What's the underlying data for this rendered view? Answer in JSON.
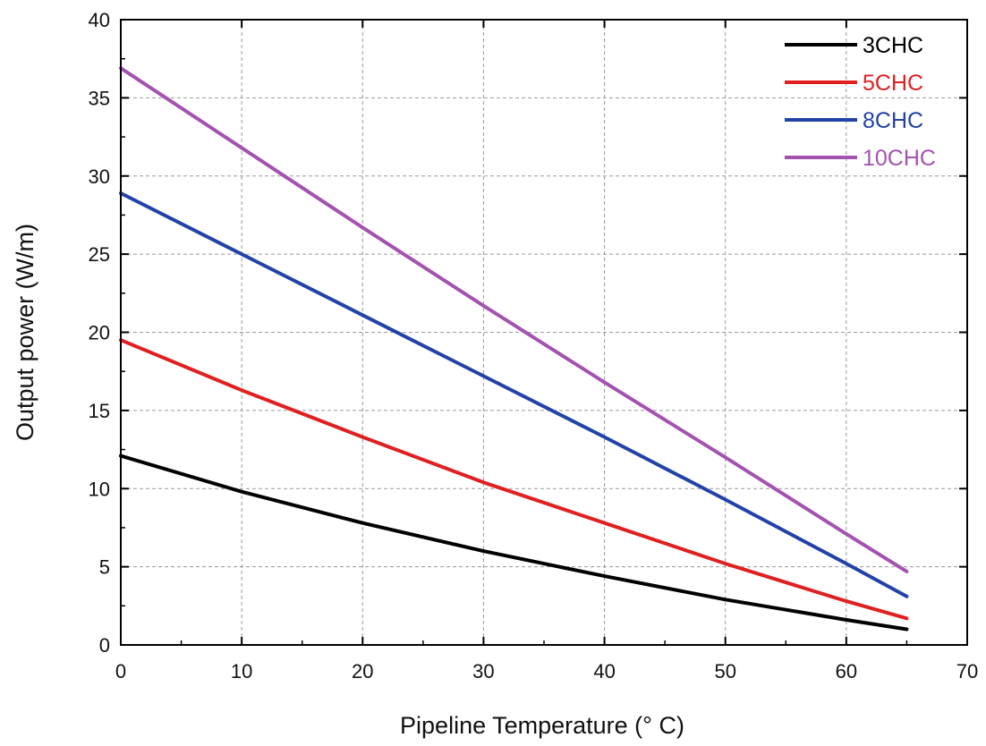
{
  "chart_data": {
    "type": "line",
    "title": "",
    "xlabel": "Pipeline Temperature (° C)",
    "ylabel": "Output power (W/m)",
    "xlim": [
      0,
      70
    ],
    "ylim": [
      0,
      40
    ],
    "xticks": [
      0,
      10,
      20,
      30,
      40,
      50,
      60,
      70
    ],
    "yticks": [
      0,
      5,
      10,
      15,
      20,
      25,
      30,
      35,
      40
    ],
    "xtick_labels": [
      "0",
      "10",
      "20",
      "30",
      "40",
      "50",
      "60",
      "70"
    ],
    "ytick_labels": [
      "0",
      "5",
      "10",
      "15",
      "20",
      "25",
      "30",
      "35",
      "40"
    ],
    "grid": true,
    "legend_position": "top-right",
    "x": [
      0,
      10,
      20,
      30,
      40,
      50,
      60,
      65
    ],
    "series": [
      {
        "name": "3CHC",
        "color": "#000000",
        "values": [
          12.1,
          9.8,
          7.8,
          6.0,
          4.4,
          2.9,
          1.6,
          1.0
        ]
      },
      {
        "name": "5CHC",
        "color": "#e02020",
        "values": [
          19.5,
          16.3,
          13.3,
          10.4,
          7.8,
          5.2,
          2.8,
          1.7
        ]
      },
      {
        "name": "8CHC",
        "color": "#2342a8",
        "values": [
          28.9,
          25.0,
          21.1,
          17.2,
          13.3,
          9.3,
          5.2,
          3.1
        ]
      },
      {
        "name": "10CHC",
        "color": "#a452b0",
        "values": [
          36.9,
          31.8,
          26.7,
          21.7,
          16.8,
          12.0,
          7.1,
          4.7
        ]
      }
    ]
  }
}
